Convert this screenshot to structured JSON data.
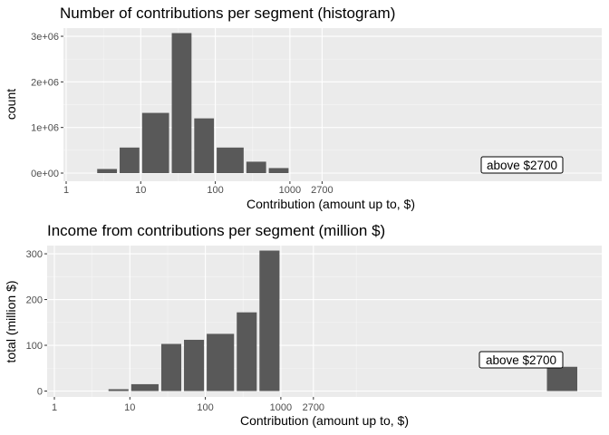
{
  "colors": {
    "panel": "#ebebeb",
    "grid_major": "#ffffff",
    "bar": "#595959",
    "tick_text": "#4d4d4d"
  },
  "chart_data": [
    {
      "type": "bar",
      "title": "Number of contributions per segment (histogram)",
      "xlabel": "Contribution (amount up to, $)",
      "ylabel": "count",
      "x_scale": "log10",
      "x_ticks": [
        "1",
        "10",
        "100",
        "1000",
        "2700"
      ],
      "y_ticks": [
        "0e+00",
        "1e+06",
        "2e+06",
        "3e+06"
      ],
      "ylim": [
        0,
        3100000
      ],
      "annotation": "above $2700",
      "bars": [
        {
          "x_low": 2.5,
          "x_high": 5,
          "value": 90000
        },
        {
          "x_low": 5,
          "x_high": 10,
          "value": 560000
        },
        {
          "x_low": 10,
          "x_high": 25,
          "value": 1320000
        },
        {
          "x_low": 25,
          "x_high": 50,
          "value": 3070000
        },
        {
          "x_low": 50,
          "x_high": 100,
          "value": 1200000
        },
        {
          "x_low": 100,
          "x_high": 250,
          "value": 560000
        },
        {
          "x_low": 250,
          "x_high": 500,
          "value": 250000
        },
        {
          "x_low": 500,
          "x_high": 1000,
          "value": 110000
        }
      ]
    },
    {
      "type": "bar",
      "title": "Income from contributions per segment (million $)",
      "xlabel": "Contribution (amount up to, $)",
      "ylabel": "total (million $)",
      "x_scale": "log10",
      "x_ticks": [
        "1",
        "10",
        "100",
        "1000",
        "2700"
      ],
      "y_ticks": [
        "0",
        "100",
        "200",
        "300"
      ],
      "ylim": [
        0,
        310
      ],
      "annotation": "above $2700",
      "bars": [
        {
          "x_low": 5,
          "x_high": 10,
          "value": 4
        },
        {
          "x_low": 10,
          "x_high": 25,
          "value": 15
        },
        {
          "x_low": 25,
          "x_high": 50,
          "value": 103
        },
        {
          "x_low": 50,
          "x_high": 100,
          "value": 112
        },
        {
          "x_low": 100,
          "x_high": 250,
          "value": 125
        },
        {
          "x_low": 250,
          "x_high": 500,
          "value": 172
        },
        {
          "x_low": 500,
          "x_high": 1000,
          "value": 307
        },
        {
          "value": 53
        }
      ]
    }
  ]
}
